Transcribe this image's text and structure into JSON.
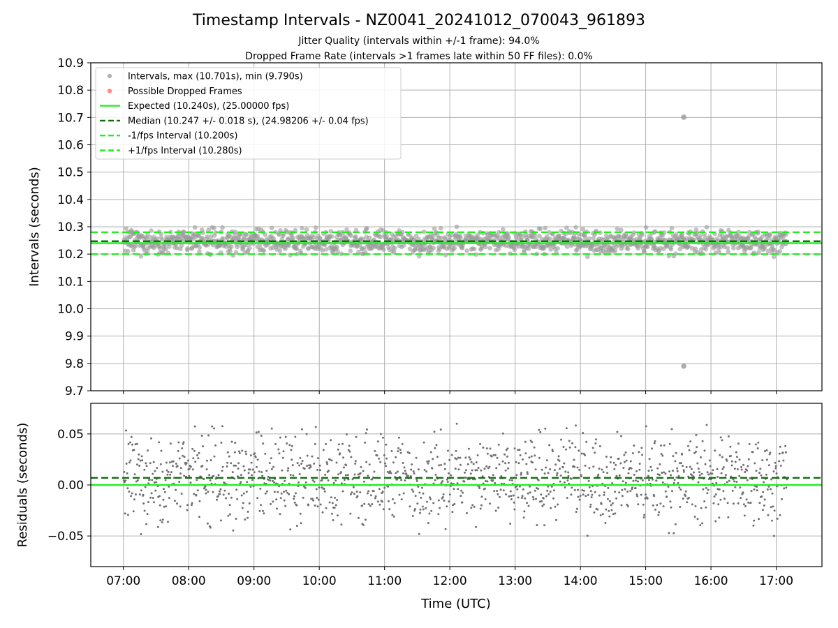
{
  "figure": {
    "title": "Timestamp Intervals - NZ0041_20241012_070043_961893",
    "subtitle_lines": [
      "Jitter Quality (intervals within +/-1 frame): 94.0%",
      "Dropped Frame Rate (intervals >1 frames late within 50 FF files): 0.0%"
    ]
  },
  "chart_data": [
    {
      "name": "intervals",
      "type": "scatter",
      "ylabel": "Intervals (seconds)",
      "xlabel": "",
      "ylim": [
        9.7,
        10.9
      ],
      "yticks": [
        "9.7",
        "9.8",
        "9.9",
        "10.0",
        "10.1",
        "10.2",
        "10.3",
        "10.4",
        "10.5",
        "10.6",
        "10.7",
        "10.8",
        "10.9"
      ],
      "xlim_hours": [
        6.5,
        17.7
      ],
      "grid": true,
      "legend_position": "upper-left",
      "legend": [
        {
          "label": "Intervals, max (10.701s), min (9.790s)",
          "marker": "dot",
          "color": "#999999"
        },
        {
          "label": "Possible Dropped Frames",
          "marker": "dot",
          "color": "#ff6666"
        },
        {
          "label": "Expected (10.240s), (25.00000 fps)",
          "marker": "solid-line",
          "color": "#22ee22"
        },
        {
          "label": "Median (10.247 +/- 0.018 s), (24.98206 +/- 0.04 fps)",
          "marker": "dashed-line",
          "color": "#106e10"
        },
        {
          "label": "-1/fps Interval (10.200s)",
          "marker": "dashed-line",
          "color": "#22ee22"
        },
        {
          "label": "+1/fps Interval (10.280s)",
          "marker": "dashed-line",
          "color": "#22ee22"
        }
      ],
      "reference_lines": [
        {
          "y": 10.24,
          "style": "solid",
          "color": "#22ee22"
        },
        {
          "y": 10.247,
          "style": "dashed",
          "color": "#106e10"
        },
        {
          "y": 10.2,
          "style": "dashed",
          "color": "#22ee22"
        },
        {
          "y": 10.28,
          "style": "dashed",
          "color": "#22ee22"
        }
      ],
      "series": {
        "time_start": "07:00",
        "time_end": "17:10",
        "interval_s": 10.24,
        "median": 10.247,
        "std": 0.018,
        "max": 10.701,
        "min": 9.79,
        "outliers": [
          {
            "x": "15:35",
            "y": 10.701
          },
          {
            "x": "15:35",
            "y": 9.79
          }
        ],
        "point_color": "#999999"
      }
    },
    {
      "name": "residuals",
      "type": "scatter",
      "ylabel": "Residuals (seconds)",
      "xlabel": "Time (UTC)",
      "ylim": [
        -0.08,
        0.08
      ],
      "yticks": [
        {
          "value": 0.05,
          "label": "0.05"
        },
        {
          "value": 0.0,
          "label": "0.00"
        },
        {
          "value": -0.05,
          "label": "−0.05"
        }
      ],
      "xticks": [
        "07:00",
        "08:00",
        "09:00",
        "10:00",
        "11:00",
        "12:00",
        "13:00",
        "14:00",
        "15:00",
        "16:00",
        "17:00"
      ],
      "grid": true,
      "reference_lines": [
        {
          "y": 0.0,
          "style": "solid",
          "color": "#22ee22"
        },
        {
          "y": 0.007,
          "style": "dashed",
          "color": "#106e10"
        }
      ],
      "series": {
        "range_typical": [
          -0.03,
          0.05
        ],
        "range_extreme": [
          -0.05,
          0.06
        ],
        "point_color": "#707070"
      }
    }
  ]
}
